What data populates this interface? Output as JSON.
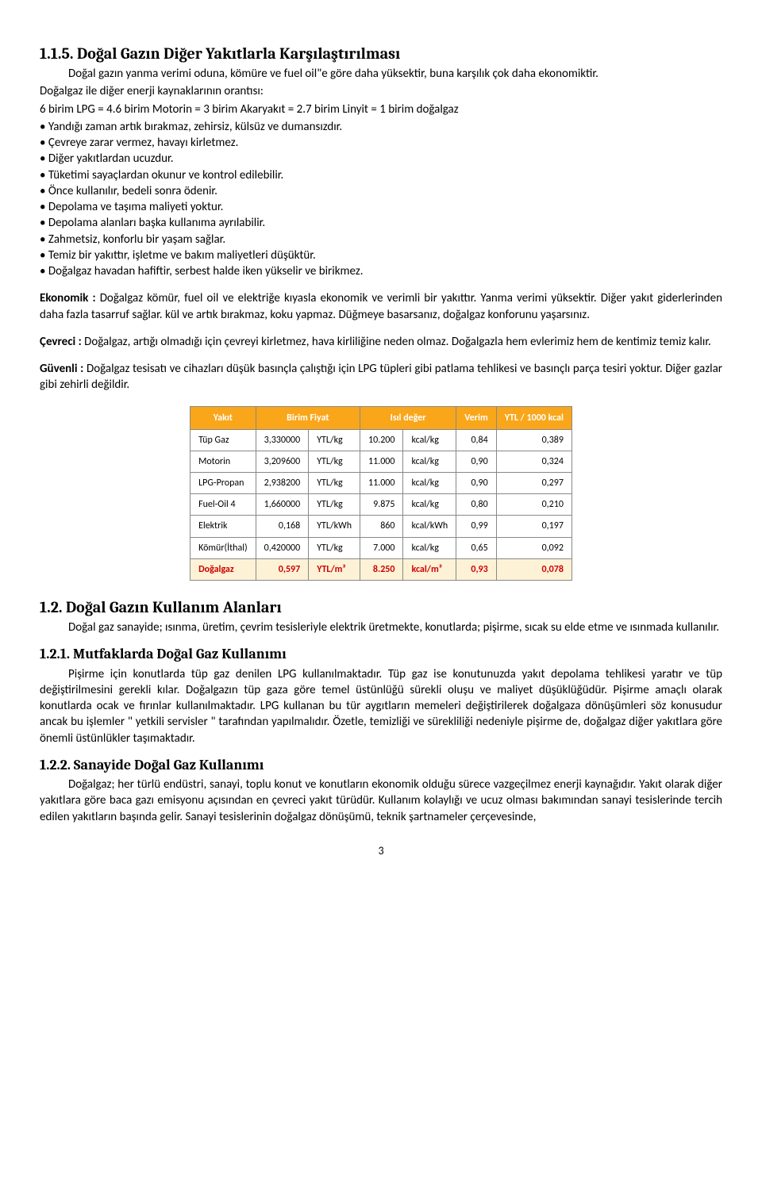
{
  "h115": "1.1.5. Doğal Gazın Diğer Yakıtlarla Karşılaştırılması",
  "p115": "Doğal gazın yanma verimi oduna, kömüre ve fuel oil\"e göre daha yüksektir, buna karşılık çok daha ekonomiktir.",
  "p115b": "Doğalgaz ile diğer enerji kaynaklarının orantısı:",
  "ratio": "6 birim LPG = 4.6 birim Motorin = 3 birim Akaryakıt = 2.7 birim Linyit = 1 birim doğalgaz",
  "bullets": [
    "• Yandığı zaman artık bırakmaz, zehirsiz, külsüz ve dumansızdır.",
    "• Çevreye zarar vermez, havayı kirletmez.",
    "• Diğer yakıtlardan ucuzdur.",
    "• Tüketimi sayaçlardan okunur ve kontrol edilebilir.",
    "• Önce kullanılır, bedeli sonra ödenir.",
    "• Depolama ve taşıma maliyeti yoktur.",
    "• Depolama alanları başka kullanıma ayrılabilir.",
    "• Zahmetsiz, konforlu bir yaşam sağlar.",
    "• Temiz bir yakıttır, işletme ve bakım maliyetleri düşüktür.",
    "• Doğalgaz havadan hafiftir, serbest halde iken yükselir ve birikmez."
  ],
  "eko_label": "Ekonomik :",
  "eko_text": " Doğalgaz kömür, fuel oil ve elektriğe kıyasla ekonomik ve verimli bir yakıttır. Yanma verimi yüksektir. Diğer yakıt giderlerinden daha fazla tasarruf sağlar. kül ve artık bırakmaz, koku yapmaz. Düğmeye basarsanız, doğalgaz konforunu yaşarsınız.",
  "cev_label": "Çevreci :",
  "cev_text": " Doğalgaz, artığı olmadığı için çevreyi kirletmez, hava kirliliğine neden olmaz. Doğalgazla hem evlerimiz hem de kentimiz temiz kalır.",
  "guv_label": "Güvenli :",
  "guv_text": " Doğalgaz tesisatı ve cihazları düşük basınçla çalıştığı için LPG tüpleri gibi patlama tehlikesi ve basınçlı parça tesiri yoktur. Diğer gazlar gibi zehirli değildir.",
  "table": {
    "header_bg": "#f9a61a",
    "header_fg": "#ffffff",
    "highlight_bg": "#fef2d6",
    "highlight_fg": "#cc0000",
    "columns": [
      "Yakıt",
      "Birim Fiyat",
      "",
      "Isıl değer",
      "",
      "Verim",
      "YTL / 1000 kcal"
    ],
    "rows": [
      [
        "Tüp Gaz",
        "3,330000",
        "YTL/kg",
        "10.200",
        "kcal/kg",
        "0,84",
        "0,389"
      ],
      [
        "Motorin",
        "3,209600",
        "YTL/kg",
        "11.000",
        "kcal/kg",
        "0,90",
        "0,324"
      ],
      [
        "LPG-Propan",
        "2,938200",
        "YTL/kg",
        "11.000",
        "kcal/kg",
        "0,90",
        "0,297"
      ],
      [
        "Fuel-Oil 4",
        "1,660000",
        "YTL/kg",
        "9.875",
        "kcal/kg",
        "0,80",
        "0,210"
      ],
      [
        "Elektrik",
        "0,168",
        "YTL/kWh",
        "860",
        "kcal/kWh",
        "0,99",
        "0,197"
      ],
      [
        "Kömür(İthal)",
        "0,420000",
        "YTL/kg",
        "7.000",
        "kcal/kg",
        "0,65",
        "0,092"
      ],
      [
        "Doğalgaz",
        "0,597",
        "YTL/m³",
        "8.250",
        "kcal/m³",
        "0,93",
        "0,078"
      ]
    ],
    "highlight_row_index": 6
  },
  "h12": "1.2. Doğal Gazın Kullanım Alanları",
  "p12": "Doğal gaz sanayide; ısınma, üretim, çevrim tesisleriyle elektrik üretmekte, konutlarda; pişirme, sıcak su elde etme ve ısınmada kullanılır.",
  "h121": "1.2.1. Mutfaklarda Doğal Gaz Kullanımı",
  "p121": "Pişirme için konutlarda tüp gaz denilen LPG kullanılmaktadır. Tüp gaz ise konutunuzda yakıt depolama tehlikesi yaratır ve tüp değiştirilmesini gerekli kılar. Doğalgazın tüp gaza göre temel üstünlüğü sürekli oluşu ve maliyet düşüklüğüdür. Pişirme amaçlı olarak konutlarda ocak ve fırınlar kullanılmaktadır. LPG kullanan bu tür aygıtların memeleri değiştirilerek doğalgaza dönüşümleri söz konusudur ancak bu işlemler \" yetkili servisler \" tarafından yapılmalıdır. Özetle, temizliği ve sürekliliği nedeniyle pişirme de, doğalgaz diğer yakıtlara göre önemli üstünlükler taşımaktadır.",
  "h122": "1.2.2. Sanayide Doğal Gaz Kullanımı",
  "p122": "Doğalgaz; her türlü endüstri, sanayi, toplu konut ve konutların ekonomik olduğu sürece vazgeçilmez enerji kaynağıdır. Yakıt olarak diğer yakıtlara göre baca gazı emisyonu açısından en çevreci yakıt türüdür. Kullanım kolaylığı ve ucuz olması bakımından sanayi tesislerinde tercih edilen yakıtların başında gelir. Sanayi tesislerinin doğalgaz dönüşümü, teknik şartnameler çerçevesinde,",
  "page_number": "3"
}
